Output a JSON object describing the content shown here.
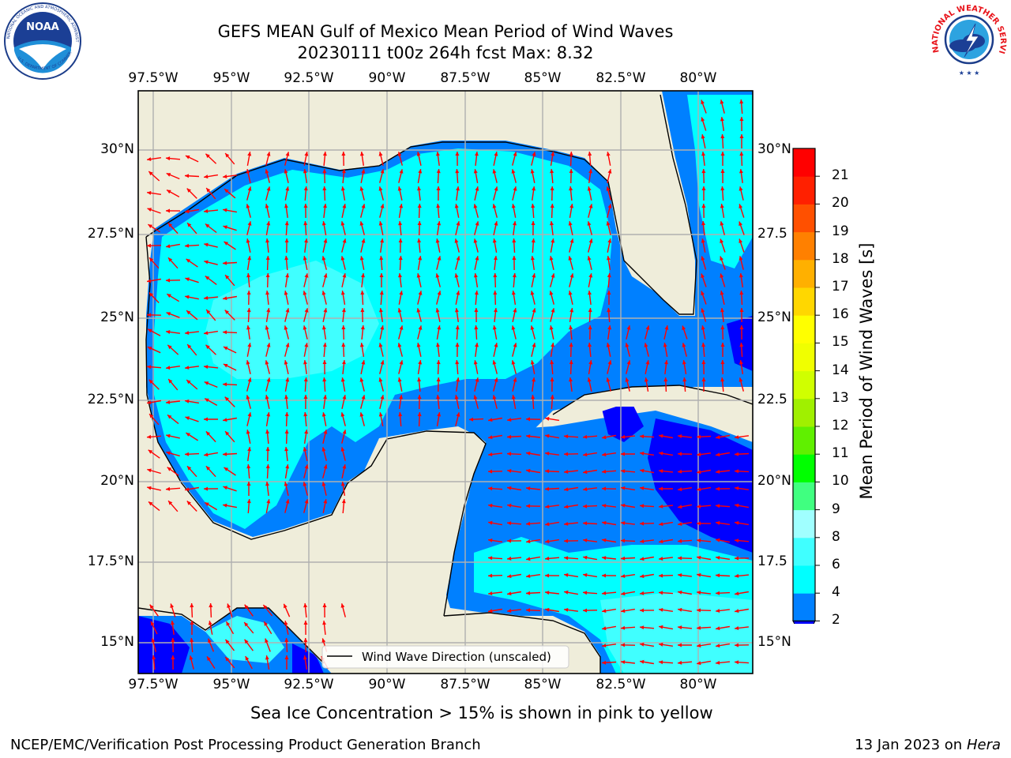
{
  "header": {
    "title_line1": "GEFS MEAN Gulf of Mexico Mean Period of Wind Waves",
    "title_line2": "20230111 t00z 264h fcst   Max: 8.32"
  },
  "logos": {
    "left": {
      "icon": "noaa-logo-icon",
      "text": "NOAA",
      "ring_top": "NATIONAL OCEANIC AND ATMOSPHERIC ADMINISTRATION",
      "ring_bottom": "U.S. DEPARTMENT OF COMMERCE"
    },
    "right": {
      "icon": "nws-logo-icon",
      "ring": "NATIONAL WEATHER SERVICE"
    }
  },
  "map": {
    "lon_ticks": [
      "97.5°W",
      "95°W",
      "92.5°W",
      "90°W",
      "87.5°W",
      "85°W",
      "82.5°W",
      "80°W"
    ],
    "lat_ticks_left": [
      "30°N",
      "27.5°N",
      "25°N",
      "22.5°N",
      "20°N",
      "17.5°N",
      "15°N"
    ],
    "lat_ticks_right": [
      "30°N",
      "27.5",
      "25°N",
      "22.5",
      "20°N",
      "17.5",
      "15°N"
    ],
    "legend_label": "Wind Wave Direction (unscaled)",
    "arrow_color": "#ff0000",
    "land_color": "#efedda"
  },
  "colorbar": {
    "title": "Mean Period of Wind Waves [s]",
    "tick_labels": [
      "2",
      "4",
      "6",
      "8",
      "9",
      "10",
      "11",
      "12",
      "13",
      "14",
      "15",
      "16",
      "17",
      "18",
      "19",
      "20",
      "21"
    ],
    "colors": [
      "#0000ff",
      "#0080ff",
      "#00ffff",
      "#40ffff",
      "#a0ffff",
      "#40ff80",
      "#00ff00",
      "#60f000",
      "#a0f000",
      "#d0ff00",
      "#f0ff00",
      "#ffff00",
      "#ffd700",
      "#ffb000",
      "#ff8000",
      "#ff5000",
      "#ff2000",
      "#ff0000"
    ]
  },
  "footer": {
    "note": "Sea Ice Concentration > 15% is shown in pink to yellow",
    "credit": "NCEP/EMC/Verification Post Processing Product Generation Branch",
    "date": "13 Jan 2023 on ",
    "host": "Hera"
  }
}
